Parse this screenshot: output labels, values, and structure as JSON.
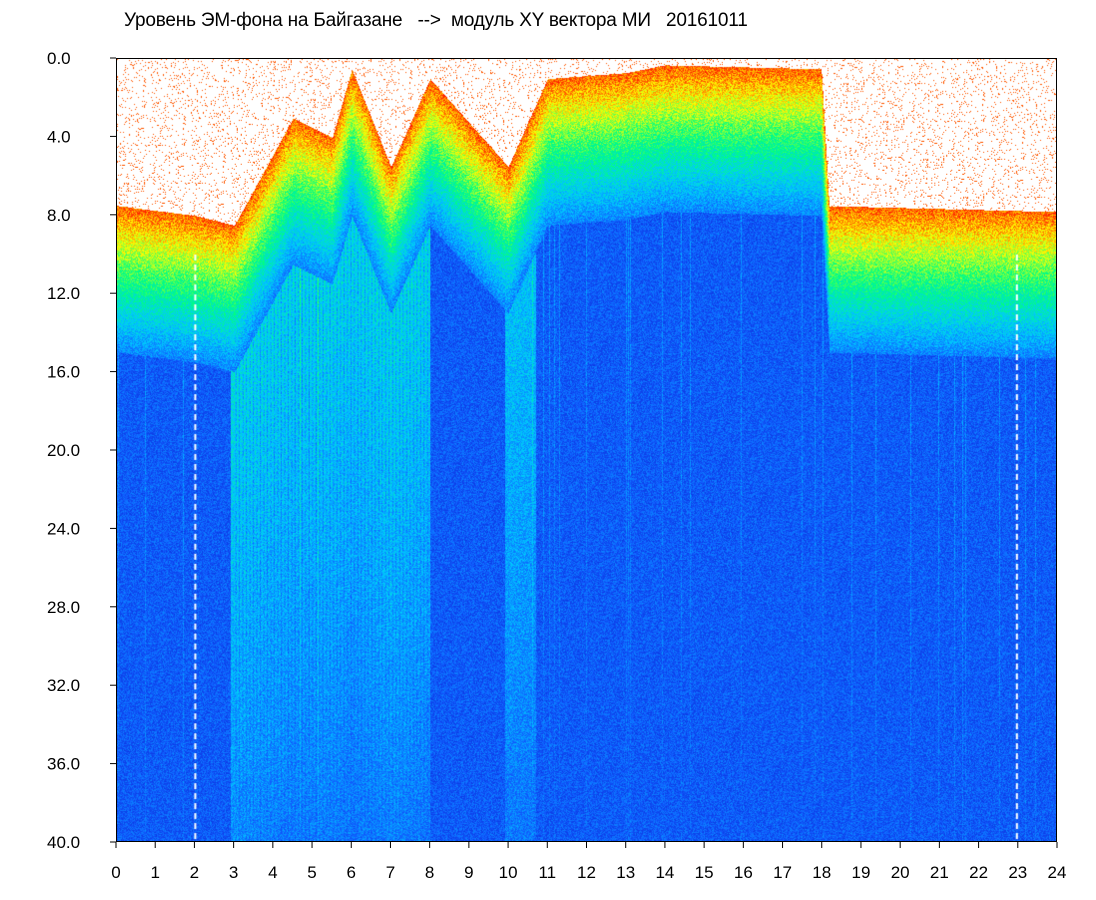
{
  "title": "Уровень ЭМ-фона на Байгазане   -->  модуль XY вектора МИ   20161011",
  "chart_data": {
    "type": "heatmap",
    "title": "Уровень ЭМ-фона на Байгазане   -->  модуль XY вектора МИ   20161011",
    "xlabel": "",
    "ylabel": "",
    "x_range": [
      0,
      24
    ],
    "y_range": [
      0.0,
      40.0
    ],
    "y_inverted": true,
    "x_ticks": [
      "0",
      "1",
      "2",
      "3",
      "4",
      "5",
      "6",
      "7",
      "8",
      "9",
      "10",
      "11",
      "12",
      "13",
      "14",
      "15",
      "16",
      "17",
      "18",
      "19",
      "20",
      "21",
      "22",
      "23",
      "24"
    ],
    "y_ticks": [
      "0.0",
      "4.0",
      "8.0",
      "12.0",
      "16.0",
      "20.0",
      "24.0",
      "28.0",
      "32.0",
      "36.0",
      "40.0"
    ],
    "colormap": [
      "#0a1fd0",
      "#1060ff",
      "#00c8ff",
      "#00ff80",
      "#ffff00",
      "#ff2000"
    ],
    "dashed_markers_x": [
      2,
      23
    ],
    "noise_upper_edge_y": [
      [
        0,
        8.0
      ],
      [
        2.0,
        8.5
      ],
      [
        3.0,
        9.0
      ],
      [
        4.5,
        3.5
      ],
      [
        5.5,
        4.5
      ],
      [
        6.0,
        1.0
      ],
      [
        7.0,
        6.0
      ],
      [
        8.0,
        1.5
      ],
      [
        10.0,
        6.0
      ],
      [
        11.0,
        1.5
      ],
      [
        13.0,
        1.2
      ],
      [
        14.0,
        0.8
      ],
      [
        18.0,
        1.0
      ],
      [
        18.2,
        8.0
      ],
      [
        24.0,
        8.3
      ]
    ],
    "grid": false
  },
  "colors": {
    "background": "#ffffff",
    "frame": "#000000",
    "text": "#000000"
  }
}
